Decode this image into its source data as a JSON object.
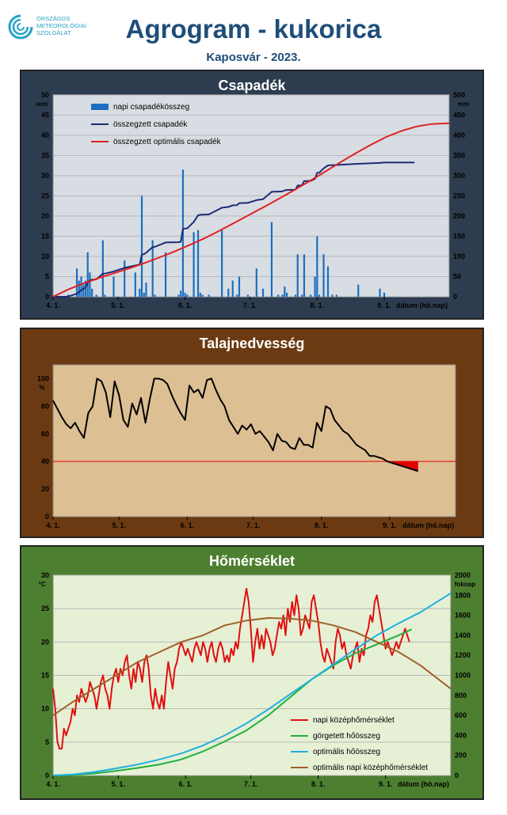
{
  "header": {
    "title": "Agrogram - kukorica",
    "subtitle": "Kaposvár - 2023.",
    "logo_lines": [
      "ORSZÁGOS",
      "METEOROLÓGIAI",
      "SZOLGÁLAT"
    ]
  },
  "colors": {
    "title": "#1f4e79",
    "precip_panel": "#2d3c4f",
    "soil_panel": "#6b3a12",
    "temp_panel": "#4d7f30"
  },
  "chart_data": [
    {
      "type": "bar",
      "title": "Csapadék",
      "xlabel": "dátum (hó.nap)",
      "ylabel": "mm",
      "y2label": "mm",
      "ylim": [
        0,
        50
      ],
      "y2lim": [
        0,
        500
      ],
      "yticks": [
        0,
        5,
        10,
        15,
        20,
        25,
        30,
        35,
        40,
        45,
        50
      ],
      "y2ticks": [
        0,
        50,
        100,
        150,
        200,
        250,
        300,
        350,
        400,
        450,
        500
      ],
      "xlim": [
        1,
        184
      ],
      "xticks": [
        {
          "x": 1,
          "label": "4. 1."
        },
        {
          "x": 31,
          "label": "5. 1."
        },
        {
          "x": 62,
          "label": "6. 1."
        },
        {
          "x": 92,
          "label": "7. 1."
        },
        {
          "x": 123,
          "label": "8. 1."
        },
        {
          "x": 154,
          "label": "9. 1."
        }
      ],
      "grid": true,
      "legend": "top-left",
      "series": [
        {
          "name": "napi csapadékösszeg",
          "kind": "bar",
          "axis": "left",
          "color": "#1a6fc0",
          "x": [
            8,
            12,
            13,
            14,
            15,
            16,
            17,
            18,
            19,
            21,
            24,
            25,
            29,
            34,
            39,
            41,
            42,
            43,
            44,
            47,
            48,
            53,
            59,
            60,
            61,
            62,
            63,
            66,
            68,
            69,
            70,
            73,
            79,
            82,
            84,
            86,
            87,
            91,
            95,
            98,
            102,
            105,
            107,
            108,
            109,
            113,
            114,
            116,
            117,
            120,
            122,
            123,
            124,
            126,
            128,
            130,
            132,
            142,
            152,
            154
          ],
          "values": [
            0.5,
            7,
            4,
            5,
            3,
            4,
            11,
            6,
            2,
            0.5,
            14,
            0.5,
            5,
            9,
            6,
            2,
            25,
            1,
            3.5,
            14,
            0.5,
            11,
            0.5,
            1.5,
            31.5,
            1,
            0.5,
            16,
            16.5,
            1,
            0.5,
            0.5,
            16.5,
            2,
            4,
            0.5,
            5,
            0.5,
            7,
            2,
            18.5,
            0.5,
            0.5,
            2.5,
            1,
            0.5,
            10.5,
            0.5,
            10.5,
            0.5,
            5,
            15,
            0.5,
            10.5,
            7.5,
            0.5,
            0.5,
            3,
            2,
            1
          ]
        },
        {
          "name": "összegzett csapadék",
          "kind": "line",
          "axis": "right",
          "color": "#1c2a78",
          "x": [
            1,
            7,
            8,
            12,
            13,
            14,
            15,
            16,
            17,
            18,
            19,
            21,
            24,
            25,
            29,
            34,
            39,
            41,
            42,
            43,
            44,
            47,
            48,
            53,
            59,
            60,
            61,
            62,
            63,
            66,
            68,
            69,
            70,
            73,
            79,
            82,
            84,
            86,
            87,
            91,
            95,
            98,
            102,
            105,
            107,
            108,
            109,
            113,
            114,
            116,
            117,
            120,
            122,
            123,
            124,
            126,
            128,
            130,
            132,
            142,
            152,
            154,
            168
          ],
          "values": [
            0,
            0,
            0.5,
            7.5,
            11.5,
            16.5,
            19.5,
            23.5,
            34.5,
            40.5,
            42.5,
            43,
            57,
            57.5,
            62.5,
            71.5,
            77.5,
            79.5,
            104.5,
            105.5,
            109,
            123,
            123.5,
            134.5,
            135,
            136.5,
            168,
            169,
            169.5,
            185.5,
            202,
            203,
            203.5,
            204,
            220.5,
            222.5,
            226.5,
            227,
            232,
            232.5,
            239.5,
            241.5,
            260,
            260.5,
            261,
            263.5,
            264.5,
            265,
            275.5,
            276,
            286.5,
            287,
            292,
            307,
            307.5,
            318,
            325.5,
            326,
            326.5,
            329.5,
            331.5,
            332.5,
            332.5
          ]
        },
        {
          "name": "összegzett optimális  csapadék",
          "kind": "line",
          "axis": "right",
          "color": "#e02020",
          "x": [
            1,
            8,
            15,
            22,
            29,
            36,
            43,
            50,
            57,
            64,
            71,
            78,
            85,
            92,
            99,
            106,
            113,
            120,
            127,
            134,
            141,
            148,
            155,
            162,
            169,
            176,
            184
          ],
          "values": [
            0,
            18,
            33,
            46,
            58,
            70,
            83,
            97,
            112,
            128,
            145,
            164,
            184,
            204,
            224,
            245,
            266,
            288,
            311,
            334,
            356,
            377,
            396,
            411,
            422,
            428,
            430
          ]
        }
      ]
    },
    {
      "type": "line",
      "title": "Talajnedvesség",
      "xlabel": "dátum (hó.nap)",
      "ylabel": "%",
      "ylim": [
        0,
        110
      ],
      "yticks": [
        0,
        20,
        40,
        60,
        80,
        100
      ],
      "xlim": [
        1,
        184
      ],
      "xticks": [
        {
          "x": 1,
          "label": "4. 1."
        },
        {
          "x": 31,
          "label": "5. 1."
        },
        {
          "x": 62,
          "label": "6. 1."
        },
        {
          "x": 92,
          "label": "7. 1."
        },
        {
          "x": 123,
          "label": "8. 1."
        },
        {
          "x": 154,
          "label": "9. 1."
        }
      ],
      "threshold": 40,
      "grid": false,
      "series": [
        {
          "name": "talajnedvesség",
          "color": "#000000",
          "x": [
            1,
            3,
            5,
            7,
            9,
            11,
            13,
            15,
            17,
            19,
            21,
            23,
            25,
            27,
            29,
            31,
            33,
            35,
            37,
            39,
            41,
            43,
            45,
            47,
            49,
            51,
            53,
            55,
            57,
            59,
            61,
            63,
            65,
            67,
            69,
            71,
            73,
            75,
            77,
            79,
            81,
            83,
            85,
            87,
            89,
            91,
            93,
            95,
            97,
            99,
            101,
            103,
            105,
            107,
            109,
            111,
            113,
            115,
            117,
            119,
            121,
            123,
            125,
            127,
            129,
            131,
            133,
            135,
            137,
            139,
            141,
            143,
            145,
            147,
            149,
            151,
            153,
            155,
            157,
            159,
            161,
            163,
            165,
            167
          ],
          "values": [
            84,
            78,
            72,
            67,
            64,
            68,
            62,
            57,
            75,
            80,
            100,
            98,
            90,
            72,
            98,
            88,
            70,
            65,
            82,
            74,
            86,
            68,
            85,
            100,
            100,
            99,
            96,
            88,
            81,
            75,
            70,
            95,
            90,
            92,
            86,
            99,
            100,
            92,
            85,
            80,
            70,
            65,
            60,
            66,
            63,
            67,
            60,
            62,
            58,
            54,
            48,
            60,
            55,
            54,
            50,
            49,
            57,
            52,
            52,
            50,
            68,
            62,
            80,
            78,
            70,
            66,
            62,
            60,
            56,
            52,
            50,
            48,
            44,
            44,
            43,
            42,
            40,
            39,
            38,
            37,
            36,
            35,
            34,
            33
          ]
        }
      ]
    },
    {
      "type": "line",
      "title": "Hőmérséklet",
      "xlabel": "dátum (hó.nap)",
      "ylabel": "°C",
      "y2label": "foknap",
      "ylim": [
        0,
        30
      ],
      "y2lim": [
        0,
        2000
      ],
      "yticks": [
        0,
        5,
        10,
        15,
        20,
        25,
        30
      ],
      "y2ticks": [
        0,
        200,
        400,
        600,
        800,
        1000,
        1200,
        1400,
        1600,
        1800,
        2000
      ],
      "xlim": [
        1,
        184
      ],
      "xticks": [
        {
          "x": 1,
          "label": "4. 1."
        },
        {
          "x": 31,
          "label": "5. 1."
        },
        {
          "x": 62,
          "label": "6. 1."
        },
        {
          "x": 92,
          "label": "7. 1."
        },
        {
          "x": 123,
          "label": "8. 1."
        },
        {
          "x": 154,
          "label": "9. 1."
        }
      ],
      "grid": true,
      "legend": "bottom-right",
      "series": [
        {
          "name": "napi középhőmérséklet",
          "axis": "left",
          "color": "#e01010",
          "x": [
            1,
            2,
            3,
            4,
            5,
            6,
            7,
            8,
            9,
            10,
            11,
            12,
            13,
            14,
            15,
            16,
            17,
            18,
            19,
            20,
            21,
            22,
            23,
            24,
            25,
            26,
            27,
            28,
            29,
            30,
            31,
            32,
            33,
            34,
            35,
            36,
            37,
            38,
            39,
            40,
            41,
            42,
            43,
            44,
            45,
            46,
            47,
            48,
            49,
            50,
            51,
            52,
            53,
            54,
            55,
            56,
            57,
            58,
            59,
            60,
            61,
            62,
            63,
            64,
            65,
            66,
            67,
            68,
            69,
            70,
            71,
            72,
            73,
            74,
            75,
            76,
            77,
            78,
            79,
            80,
            81,
            82,
            83,
            84,
            85,
            86,
            87,
            88,
            89,
            90,
            91,
            92,
            93,
            94,
            95,
            96,
            97,
            98,
            99,
            100,
            101,
            102,
            103,
            104,
            105,
            106,
            107,
            108,
            109,
            110,
            111,
            112,
            113,
            114,
            115,
            116,
            117,
            118,
            119,
            120,
            121,
            122,
            123,
            124,
            125,
            126,
            127,
            128,
            129,
            130,
            131,
            132,
            133,
            134,
            135,
            136,
            137,
            138,
            139,
            140,
            141,
            142,
            143,
            144,
            145,
            146,
            147,
            148,
            149,
            150,
            151,
            152,
            153,
            154,
            155,
            156,
            157,
            158,
            159,
            160,
            161,
            162,
            163,
            164,
            165
          ],
          "values": [
            13,
            10,
            5,
            4,
            4,
            7,
            6,
            7,
            8,
            10,
            9,
            12,
            11,
            13,
            12,
            11,
            12,
            14,
            13,
            12,
            10,
            12,
            14,
            15,
            13,
            12,
            10,
            13,
            15,
            16,
            14,
            16,
            15,
            17,
            18,
            15,
            13,
            16,
            14,
            17,
            16,
            14,
            17,
            18,
            16,
            12,
            10,
            13,
            11,
            10,
            12,
            10,
            14,
            17,
            15,
            13,
            16,
            17,
            19,
            20,
            19,
            18,
            19,
            18,
            17,
            19,
            20,
            19,
            18,
            20,
            19,
            17,
            19,
            20,
            18,
            17,
            19,
            20,
            19,
            17,
            18,
            17,
            19,
            18,
            20,
            19,
            22,
            24,
            26,
            28,
            26,
            22,
            17,
            20,
            22,
            19,
            21,
            19,
            22,
            21,
            20,
            18,
            19,
            21,
            23,
            22,
            24,
            21,
            25,
            23,
            26,
            24,
            27,
            25,
            21,
            22,
            24,
            23,
            22,
            26,
            27,
            25,
            23,
            20,
            18,
            17,
            19,
            18,
            17,
            16,
            20,
            22,
            21,
            19,
            20,
            18,
            17,
            16,
            18,
            19,
            20,
            17,
            19,
            18,
            21,
            22,
            24,
            23,
            26,
            27,
            25,
            23,
            21,
            19,
            20,
            19,
            18,
            19,
            20,
            19,
            20,
            21,
            22,
            21,
            20
          ]
        },
        {
          "name": "görgetett hőösszeg",
          "axis": "right",
          "color": "#20b040",
          "x": [
            1,
            10,
            20,
            30,
            40,
            50,
            60,
            70,
            80,
            90,
            100,
            110,
            120,
            130,
            140,
            150,
            160,
            166
          ],
          "values": [
            0,
            5,
            20,
            45,
            75,
            110,
            160,
            240,
            340,
            450,
            600,
            780,
            960,
            1100,
            1220,
            1310,
            1400,
            1460
          ]
        },
        {
          "name": "optimális hőösszeg",
          "axis": "right",
          "color": "#20b0e0",
          "x": [
            1,
            10,
            20,
            30,
            40,
            50,
            60,
            70,
            80,
            90,
            100,
            110,
            120,
            130,
            140,
            150,
            160,
            170,
            184
          ],
          "values": [
            0,
            10,
            35,
            70,
            110,
            160,
            220,
            300,
            400,
            520,
            660,
            810,
            960,
            1110,
            1260,
            1400,
            1520,
            1630,
            1820
          ]
        },
        {
          "name": "optimális napi középhőmérséklet",
          "axis": "left",
          "color": "#a0602a",
          "x": [
            1,
            10,
            20,
            30,
            40,
            50,
            60,
            70,
            80,
            90,
            100,
            110,
            120,
            130,
            140,
            150,
            160,
            170,
            184
          ],
          "values": [
            9,
            11,
            13,
            15,
            17,
            18.5,
            20,
            21,
            22.5,
            23.2,
            23.6,
            23.5,
            23.2,
            22.5,
            21.5,
            20,
            18.5,
            16.5,
            13
          ]
        }
      ]
    }
  ]
}
